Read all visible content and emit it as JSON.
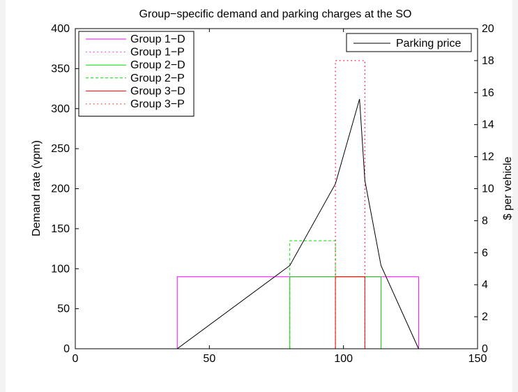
{
  "chart_data": {
    "type": "line",
    "title": "Group−specific demand and parking charges at the SO",
    "xlabel": "",
    "ylabel_left": "Demand rate (vpm)",
    "ylabel_right": "$ per vehicle",
    "xlim": [
      0,
      150
    ],
    "ylim_left": [
      0,
      400
    ],
    "ylim_right": [
      0,
      20
    ],
    "x_ticks": [
      "0",
      "50",
      "100",
      "150"
    ],
    "y_ticks_left": [
      "0",
      "50",
      "100",
      "150",
      "200",
      "250",
      "300",
      "350",
      "400"
    ],
    "y_ticks_right": [
      "0",
      "2",
      "4",
      "6",
      "8",
      "10",
      "12",
      "14",
      "16",
      "18",
      "20"
    ],
    "grid": false,
    "legend_left_position": "top-left",
    "legend_right_position": "top-right",
    "series": [
      {
        "name": "Group 1−D",
        "axis": "left",
        "style": "solid",
        "color": "#ff00ff",
        "points": [
          [
            0,
            0
          ],
          [
            38,
            0
          ],
          [
            38,
            90
          ],
          [
            128,
            90
          ],
          [
            128,
            0
          ],
          [
            137,
            0
          ]
        ]
      },
      {
        "name": "Group 1−P",
        "axis": "left",
        "style": "dotted",
        "color": "#ff00ff",
        "points": [
          [
            0,
            0
          ],
          [
            97,
            0
          ],
          [
            97,
            360
          ],
          [
            108,
            360
          ],
          [
            108,
            0
          ],
          [
            137,
            0
          ]
        ]
      },
      {
        "name": "Group 2−D",
        "axis": "left",
        "style": "solid",
        "color": "#00dd00",
        "points": [
          [
            0,
            0
          ],
          [
            80,
            0
          ],
          [
            80,
            90
          ],
          [
            114,
            90
          ],
          [
            114,
            0
          ],
          [
            137,
            0
          ]
        ]
      },
      {
        "name": "Group 2−P",
        "axis": "left",
        "style": "dashed",
        "color": "#00dd00",
        "points": [
          [
            0,
            0
          ],
          [
            80,
            0
          ],
          [
            80,
            135
          ],
          [
            97,
            135
          ],
          [
            97,
            0
          ],
          [
            137,
            0
          ]
        ]
      },
      {
        "name": "Group 3−D",
        "axis": "left",
        "style": "solid",
        "color": "#ff0000",
        "points": [
          [
            0,
            0
          ],
          [
            97,
            0
          ],
          [
            97,
            90
          ],
          [
            108,
            90
          ],
          [
            108,
            0
          ],
          [
            137,
            0
          ]
        ]
      },
      {
        "name": "Group 3−P",
        "axis": "left",
        "style": "dotted",
        "color": "#ff0000",
        "points": [
          [
            0,
            0
          ],
          [
            97,
            0
          ],
          [
            97,
            360
          ],
          [
            108,
            360
          ],
          [
            108,
            0
          ],
          [
            137,
            0
          ]
        ]
      },
      {
        "name": "Parking price",
        "axis": "right",
        "style": "solid",
        "color": "#000000",
        "points": [
          [
            38,
            0
          ],
          [
            80,
            5.2
          ],
          [
            97,
            10.3
          ],
          [
            106,
            15.6
          ],
          [
            108,
            10.5
          ],
          [
            114,
            5.2
          ],
          [
            128,
            0
          ]
        ]
      }
    ]
  }
}
